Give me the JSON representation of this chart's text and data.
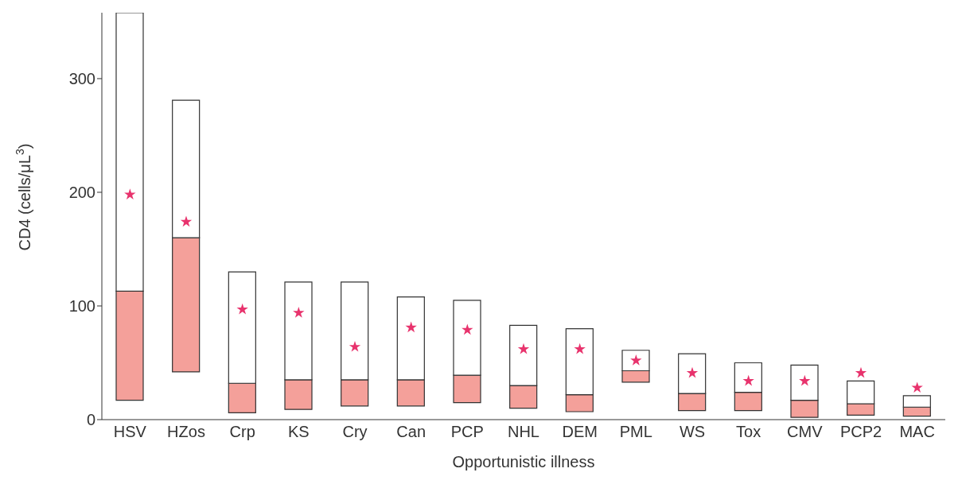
{
  "chart_data": {
    "type": "bar",
    "xlabel": "Opportunistic illness",
    "ylabel": "CD4 (cells/μL$^{3}$)",
    "categories": [
      "HSV",
      "HZos",
      "Crp",
      "KS",
      "Cry",
      "Can",
      "PCP",
      "NHL",
      "DEM",
      "PML",
      "WS",
      "Tox",
      "CMV",
      "PCP2",
      "MAC"
    ],
    "series": [
      {
        "color": "#f4a09a",
        "base": [
          17,
          42,
          6,
          9,
          12,
          12,
          15,
          10,
          7,
          33,
          8,
          8,
          2,
          4,
          3
        ],
        "values": [
          96,
          118,
          26,
          26,
          23,
          23,
          24,
          20,
          15,
          10,
          15,
          16,
          15,
          10,
          8
        ]
      },
      {
        "color": "#ffffff",
        "base": [
          113,
          160,
          32,
          35,
          35,
          35,
          39,
          30,
          22,
          43,
          23,
          24,
          17,
          14,
          11
        ],
        "values": [
          245,
          121,
          98,
          86,
          86,
          73,
          66,
          53,
          58,
          18,
          35,
          26,
          31,
          20,
          10
        ]
      },
      {
        "type": "scatter",
        "marker": "star",
        "color": "#e8336d",
        "x": [
          "HSV",
          "HZos",
          "Crp",
          "KS",
          "Cry",
          "Can",
          "PCP",
          "NHL",
          "DEM",
          "PML",
          "WS",
          "Tox",
          "CMV",
          "PCP2",
          "MAC"
        ],
        "values": [
          198,
          174,
          97,
          94,
          64,
          81,
          79,
          62,
          62,
          52,
          41,
          34,
          34,
          41,
          28
        ]
      }
    ],
    "ylim": [
      0,
      358
    ],
    "yticks": [
      0,
      100,
      200,
      300
    ],
    "grid": false
  }
}
